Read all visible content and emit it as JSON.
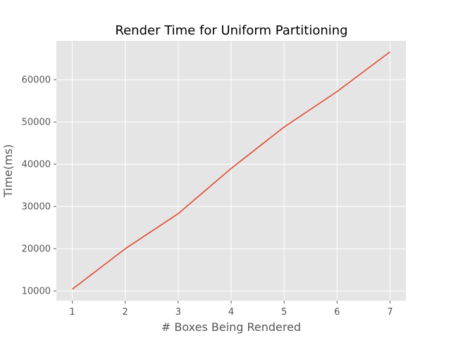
{
  "chart_data": {
    "type": "line",
    "title": "Render Time for Uniform Partitioning",
    "xlabel": "# Boxes Being Rendered",
    "ylabel": "Time(ms)",
    "x": [
      1,
      2,
      3,
      4,
      5,
      6,
      7
    ],
    "xlim": [
      0.7,
      7.3
    ],
    "ylim": [
      7700,
      69200
    ],
    "xticks": [
      1,
      2,
      3,
      4,
      5,
      6,
      7
    ],
    "yticks": [
      10000,
      20000,
      30000,
      40000,
      50000,
      60000
    ],
    "grid": true,
    "legend": "none",
    "series": [
      {
        "values": [
          10400,
          20000,
          28300,
          39000,
          48800,
          57200,
          66600
        ],
        "color": "#E24A33"
      }
    ],
    "colors": {
      "plot_background": "#E5E5E5",
      "grid": "#FFFFFF",
      "text": "#555555"
    }
  }
}
